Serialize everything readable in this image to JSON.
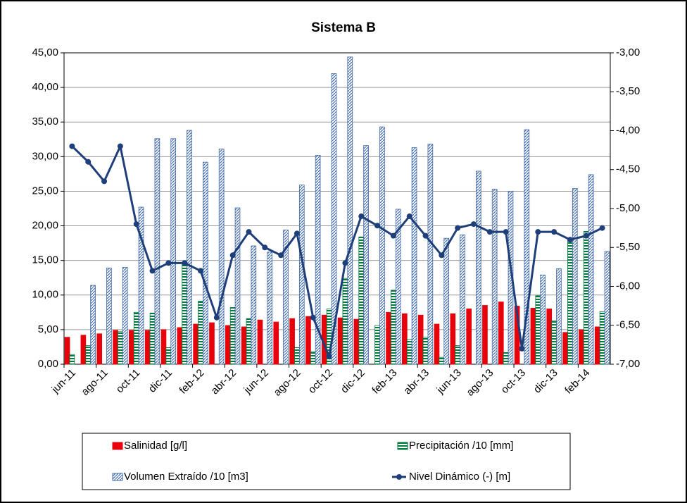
{
  "chart_data": {
    "type": "bar",
    "title": "Sistema B",
    "categories": [
      "jun-11",
      null,
      "ago-11",
      null,
      "oct-11",
      null,
      "dic-11",
      null,
      "feb-12",
      null,
      "abr-12",
      null,
      "jun-12",
      null,
      "ago-12",
      null,
      "oct-12",
      null,
      "dic-12",
      null,
      "feb-13",
      null,
      "abr-13",
      null,
      "jun-13",
      null,
      "ago-13",
      null,
      "oct-13",
      null,
      "dic-13",
      null,
      "feb-14",
      null
    ],
    "series": [
      {
        "name": "Salinidad [g/l]",
        "type": "bar",
        "fill": "solid",
        "color": "#e8000b",
        "values": [
          3.9,
          4.2,
          4.4,
          4.9,
          4.9,
          4.9,
          5.0,
          5.3,
          5.8,
          6.0,
          5.6,
          5.4,
          6.4,
          6.1,
          6.6,
          6.9,
          7.1,
          6.7,
          6.5,
          0,
          7.5,
          7.3,
          7.1,
          5.8,
          7.3,
          8.0,
          8.5,
          9.0,
          8.4,
          8.1,
          8.0,
          4.6,
          5.0,
          5.4
        ]
      },
      {
        "name": "Precipitación /10 [mm]",
        "type": "bar",
        "fill": "stripes",
        "color": "#007a3d",
        "values": [
          1.4,
          2.7,
          0,
          4.7,
          7.5,
          7.4,
          2.4,
          14.6,
          9.1,
          0,
          8.2,
          6.6,
          0,
          0,
          2.4,
          1.8,
          8.0,
          12.4,
          18.4,
          5.6,
          10.7,
          3.6,
          3.9,
          1.0,
          2.7,
          0,
          0,
          1.7,
          0,
          9.9,
          6.3,
          18.0,
          19.2,
          7.6
        ]
      },
      {
        "name": "Volumen Extraído /10 [m3]",
        "type": "bar",
        "fill": "hatch",
        "color": "#3f6aa8",
        "values": [
          0,
          11.4,
          13.9,
          14.0,
          22.7,
          32.6,
          32.6,
          33.8,
          29.2,
          31.1,
          22.6,
          17.1,
          16.2,
          19.4,
          25.9,
          30.2,
          42.0,
          44.4,
          31.6,
          34.3,
          22.4,
          31.3,
          31.8,
          18.2,
          18.7,
          27.9,
          25.3,
          25.0,
          33.9,
          12.9,
          13.8,
          25.4,
          27.4,
          16.3
        ]
      },
      {
        "name": "Nivel Dinámico (-) [m]",
        "type": "line",
        "axis": "y2",
        "color": "#1f3f7a",
        "values": [
          -4.2,
          -4.4,
          -4.65,
          -4.2,
          -5.2,
          -5.8,
          -5.7,
          -5.7,
          -5.8,
          -6.4,
          -5.6,
          -5.3,
          -5.5,
          -5.6,
          -5.32,
          -6.4,
          -6.9,
          -5.7,
          -5.1,
          -5.22,
          -5.35,
          -5.1,
          -5.35,
          -5.6,
          -5.25,
          -5.2,
          -5.3,
          -5.3,
          -6.8,
          -5.3,
          -5.3,
          -5.4,
          -5.35,
          -5.25
        ]
      }
    ],
    "ylim": [
      0,
      45
    ],
    "yticks": [
      {
        "value": 0,
        "label": "0,00"
      },
      {
        "value": 5,
        "label": "5,00"
      },
      {
        "value": 10,
        "label": "10,00"
      },
      {
        "value": 15,
        "label": "15,00"
      },
      {
        "value": 20,
        "label": "20,00"
      },
      {
        "value": 25,
        "label": "25,00"
      },
      {
        "value": 30,
        "label": "30,00"
      },
      {
        "value": 35,
        "label": "35,00"
      },
      {
        "value": 40,
        "label": "40,00"
      },
      {
        "value": 45,
        "label": "45,00"
      }
    ],
    "y2lim": [
      -7,
      -3
    ],
    "y2ticks": [
      {
        "value": -7,
        "label": "-7,00"
      },
      {
        "value": -6.5,
        "label": "-6,50"
      },
      {
        "value": -6,
        "label": "-6,00"
      },
      {
        "value": -5.5,
        "label": "-5,50"
      },
      {
        "value": -5,
        "label": "-5,00"
      },
      {
        "value": -4.5,
        "label": "-4,50"
      },
      {
        "value": -4,
        "label": "-4,00"
      },
      {
        "value": -3.5,
        "label": "-3,50"
      },
      {
        "value": -3,
        "label": "-3,00"
      }
    ],
    "grid": true,
    "legend": "bottom"
  }
}
